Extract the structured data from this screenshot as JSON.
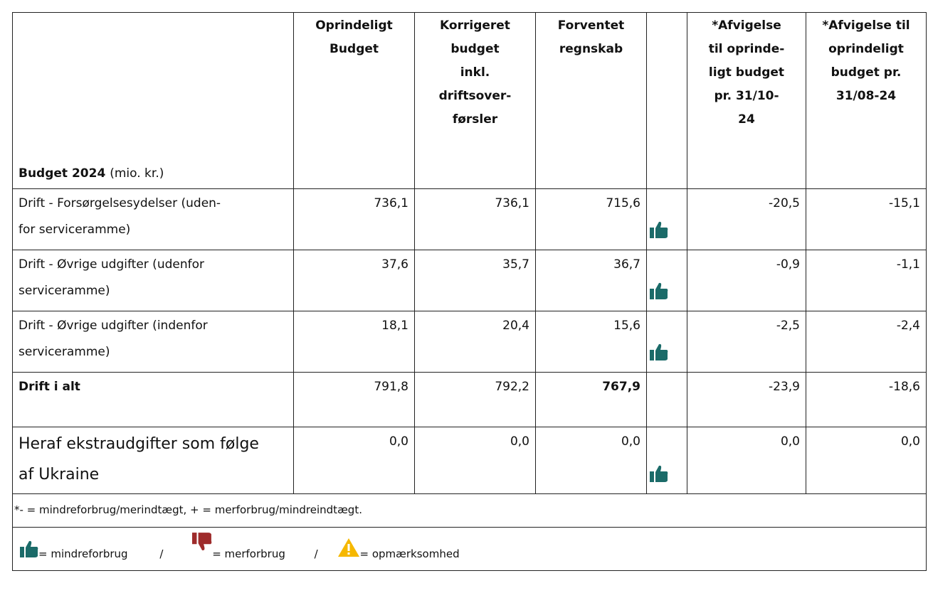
{
  "header": {
    "label_bold": "Budget 2024",
    "label_rest": "(mio. kr.)",
    "columns": [
      [
        "Oprindeligt",
        "Budget"
      ],
      [
        "Korrigeret",
        "budget",
        "inkl.",
        "driftsover-",
        "førsler"
      ],
      [
        "Forventet",
        "regnskab"
      ],
      [
        "*Afvigelse",
        "til oprinde-",
        "ligt budget",
        "pr. 31/10-",
        "24"
      ],
      [
        "*Afvigelse til",
        "oprindeligt",
        "budget pr.",
        "31/08-24"
      ]
    ]
  },
  "table": {
    "rows": [
      {
        "label": [
          "Drift - Forsørgelsesydelser (uden-",
          "for serviceramme)"
        ],
        "values": [
          "736,1",
          "736,1",
          "715,6",
          "-20,5",
          "-15,1"
        ]
      },
      {
        "label": [
          "Drift - Øvrige udgifter (udenfor",
          "serviceramme)"
        ],
        "values": [
          "37,6",
          "35,7",
          "36,7",
          "-0,9",
          "-1,1"
        ]
      },
      {
        "label": [
          "Drift - Øvrige udgifter (indenfor",
          "serviceramme)"
        ],
        "values": [
          "18,1",
          "20,4",
          "15,6",
          "-2,5",
          "-2,4"
        ]
      },
      {
        "label": [
          "Drift i alt"
        ],
        "values": [
          "791,8",
          "792,2",
          "767,9",
          "-23,9",
          "-18,6"
        ]
      },
      {
        "label": [
          "Heraf ekstraudgifter som følge",
          "af Ukraine"
        ],
        "values": [
          "0,0",
          "0,0",
          "0,0",
          "0,0",
          "0,0"
        ]
      }
    ]
  },
  "footnote": "*- = mindreforbrug/merindtægt, + = merforbrug/mindreindtægt.",
  "legend": {
    "items": [
      "= mindreforbrug",
      "/",
      "= merforbrug",
      "/",
      "= opmærksomhed"
    ]
  }
}
